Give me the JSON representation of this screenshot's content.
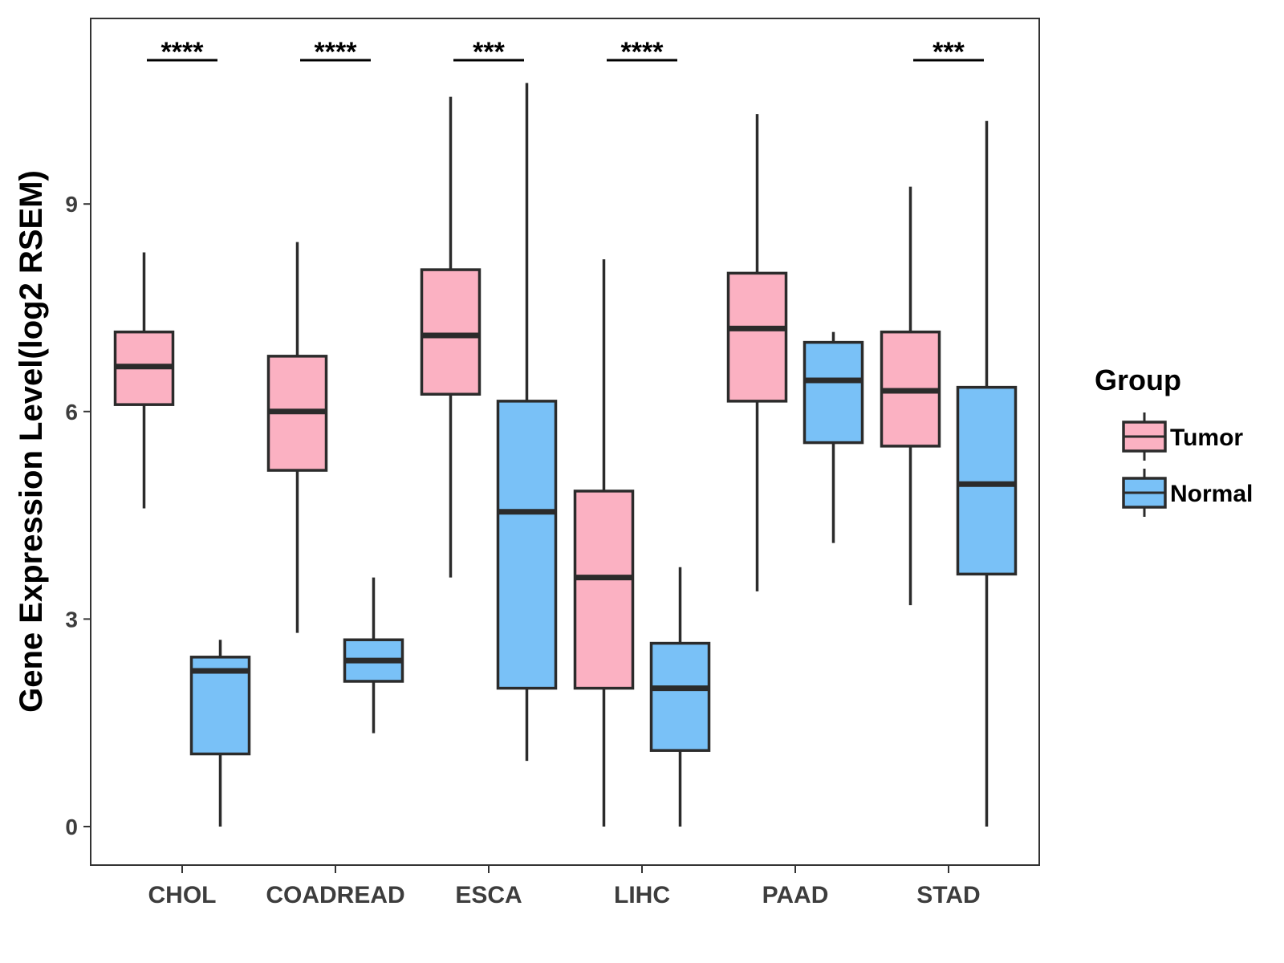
{
  "chart_data": {
    "type": "boxplot",
    "title": "",
    "xlabel": "",
    "ylabel": "Gene Expression Level(log2 RSEM)",
    "ylim": [
      -0.5,
      11.75
    ],
    "yticks": [
      0,
      3,
      6,
      9
    ],
    "categories": [
      "CHOL",
      "COADREAD",
      "ESCA",
      "LIHC",
      "PAAD",
      "STAD"
    ],
    "legend": {
      "title": "Group",
      "position": "right",
      "entries": [
        {
          "name": "Tumor",
          "color": "#fbb1c2"
        },
        {
          "name": "Normal",
          "color": "#79c1f7"
        }
      ]
    },
    "series": [
      {
        "name": "Tumor",
        "color": "#fbb1c2",
        "boxes": [
          {
            "category": "CHOL",
            "min": 4.6,
            "q1": 6.1,
            "median": 6.65,
            "q3": 7.15,
            "max": 8.3
          },
          {
            "category": "COADREAD",
            "min": 2.8,
            "q1": 5.15,
            "median": 6.0,
            "q3": 6.8,
            "max": 8.45
          },
          {
            "category": "ESCA",
            "min": 3.6,
            "q1": 6.25,
            "median": 7.1,
            "q3": 8.05,
            "max": 10.55
          },
          {
            "category": "LIHC",
            "min": 0.0,
            "q1": 2.0,
            "median": 3.6,
            "q3": 4.85,
            "max": 8.2
          },
          {
            "category": "PAAD",
            "min": 3.4,
            "q1": 6.15,
            "median": 7.2,
            "q3": 8.0,
            "max": 10.3
          },
          {
            "category": "STAD",
            "min": 3.2,
            "q1": 5.5,
            "median": 6.3,
            "q3": 7.15,
            "max": 9.25
          }
        ]
      },
      {
        "name": "Normal",
        "color": "#79c1f7",
        "boxes": [
          {
            "category": "CHOL",
            "min": 0.0,
            "q1": 1.05,
            "median": 2.25,
            "q3": 2.45,
            "max": 2.7
          },
          {
            "category": "COADREAD",
            "min": 1.35,
            "q1": 2.1,
            "median": 2.4,
            "q3": 2.7,
            "max": 3.6
          },
          {
            "category": "ESCA",
            "min": 0.95,
            "q1": 2.0,
            "median": 4.55,
            "q3": 6.15,
            "max": 10.75
          },
          {
            "category": "LIHC",
            "min": 0.0,
            "q1": 1.1,
            "median": 2.0,
            "q3": 2.65,
            "max": 3.75
          },
          {
            "category": "PAAD",
            "min": 4.1,
            "q1": 5.55,
            "median": 6.45,
            "q3": 7.0,
            "max": 7.15
          },
          {
            "category": "STAD",
            "min": 0.0,
            "q1": 3.65,
            "median": 4.95,
            "q3": 6.35,
            "max": 10.2
          }
        ]
      }
    ],
    "significance": [
      {
        "category": "CHOL",
        "label": "****"
      },
      {
        "category": "COADREAD",
        "label": "****"
      },
      {
        "category": "ESCA",
        "label": "***"
      },
      {
        "category": "LIHC",
        "label": "****"
      },
      {
        "category": "PAAD",
        "label": ""
      },
      {
        "category": "STAD",
        "label": "***"
      }
    ]
  }
}
